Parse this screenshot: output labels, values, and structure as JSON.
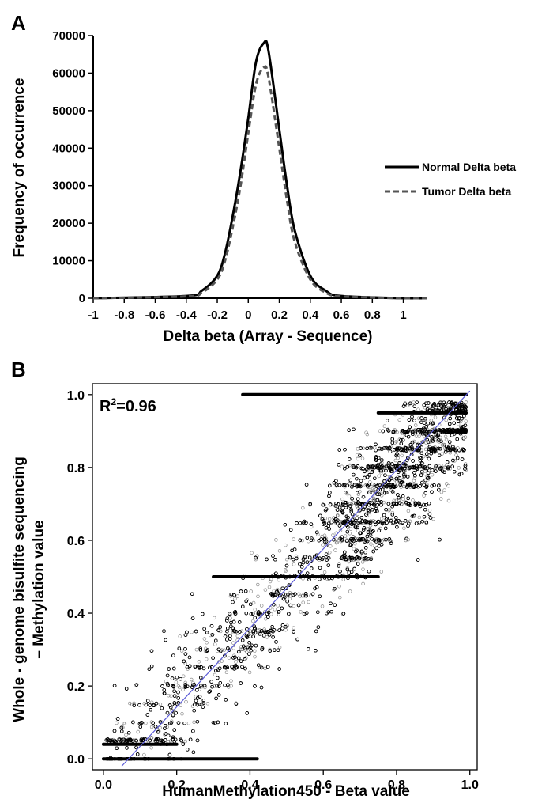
{
  "chart_data": [
    {
      "panel": "A",
      "type": "line",
      "xlabel": "Delta beta (Array - Sequence)",
      "ylabel": "Frequency of occurrence",
      "xlim": [
        -1.0,
        1.15
      ],
      "ylim": [
        0,
        70000
      ],
      "x_ticks": [
        "-1",
        "-0.8",
        "-0.6",
        "-0.4",
        "-0.2",
        "0",
        "0.2",
        "0.4",
        "0.6",
        "0.8",
        "1"
      ],
      "y_ticks": [
        "0",
        "10000",
        "20000",
        "30000",
        "40000",
        "50000",
        "60000",
        "70000"
      ],
      "legend_position": "right",
      "series": [
        {
          "name": "Normal Delta beta",
          "style": "solid",
          "color": "#000000",
          "x": [
            -1.0,
            -0.4,
            -0.3,
            -0.2,
            -0.15,
            -0.1,
            -0.05,
            0.0,
            0.05,
            0.1,
            0.13,
            0.2,
            0.25,
            0.3,
            0.4,
            0.5,
            0.6,
            1.0,
            1.15
          ],
          "y": [
            0,
            600,
            2000,
            6000,
            12000,
            22000,
            34000,
            48000,
            63000,
            68000,
            66000,
            45000,
            30000,
            18000,
            6000,
            2000,
            600,
            0,
            0
          ]
        },
        {
          "name": "Tumor Delta beta",
          "style": "dashed",
          "color": "#555555",
          "x": [
            -1.0,
            -0.4,
            -0.3,
            -0.2,
            -0.15,
            -0.1,
            -0.05,
            0.0,
            0.05,
            0.1,
            0.13,
            0.2,
            0.25,
            0.3,
            0.4,
            0.5,
            0.6,
            1.0,
            1.15
          ],
          "y": [
            0,
            500,
            1500,
            5000,
            10000,
            19000,
            30000,
            44000,
            57000,
            61500,
            59000,
            40000,
            26000,
            15000,
            5000,
            1500,
            500,
            0,
            0
          ]
        }
      ]
    },
    {
      "panel": "B",
      "type": "scatter",
      "xlabel": "HumanMethylation450 - Beta value",
      "ylabel_lines": [
        "Whole - genome bisulfite sequencing",
        "– Methylation value"
      ],
      "xlim": [
        -0.03,
        1.02
      ],
      "ylim": [
        -0.03,
        1.03
      ],
      "x_ticks": [
        "0.0",
        "0.2",
        "0.4",
        "0.6",
        "0.8",
        "1.0"
      ],
      "y_ticks": [
        "0.0",
        "0.2",
        "0.4",
        "0.6",
        "0.8",
        "1.0"
      ],
      "r2_base": "R",
      "r2_sup": "2",
      "r2_value": "=0.96",
      "fit_line": {
        "color": "#5a5ad6",
        "x": [
          0.05,
          1.0
        ],
        "y": [
          -0.02,
          1.01
        ]
      },
      "bands": [
        {
          "x": [
            0.0,
            0.42
          ],
          "y": 0.0
        },
        {
          "x": [
            0.0,
            0.2
          ],
          "y": 0.04
        },
        {
          "x": [
            0.3,
            0.75
          ],
          "y": 0.5
        },
        {
          "x": [
            0.38,
            0.99
          ],
          "y": 1.0
        },
        {
          "x": [
            0.75,
            0.99
          ],
          "y": 0.95
        }
      ],
      "point_count": 11000,
      "point_color": "#000000"
    }
  ],
  "panel_labels": [
    "A",
    "B"
  ]
}
